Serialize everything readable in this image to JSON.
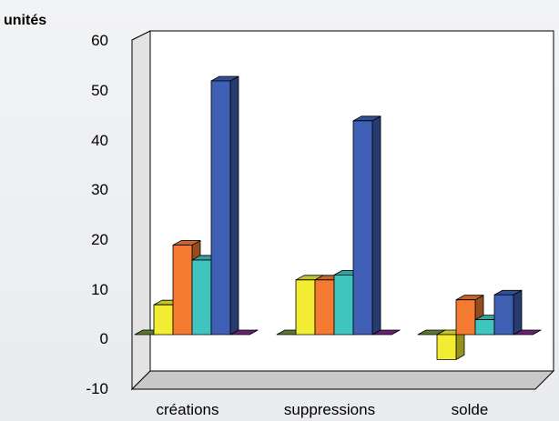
{
  "chart_data": {
    "type": "bar",
    "ylabel": "unités",
    "categories": [
      "créations",
      "suppressions",
      "solde"
    ],
    "y_ticks": [
      "60",
      "50",
      "40",
      "30",
      "20",
      "10",
      "0",
      "-10"
    ],
    "ylim": [
      -10,
      60
    ],
    "grid": false,
    "style": "3d-clustered-bar",
    "series": [
      {
        "color": "#6e8f3a",
        "values": [
          0,
          0,
          0
        ]
      },
      {
        "color": "#f2ec32",
        "values": [
          6,
          11,
          -5
        ]
      },
      {
        "color": "#f47a31",
        "values": [
          18,
          11,
          7
        ]
      },
      {
        "color": "#3fc4c0",
        "values": [
          15,
          12,
          3
        ]
      },
      {
        "color": "#3f5fb4",
        "values": [
          51,
          43,
          8
        ]
      },
      {
        "color": "#7a2a8a",
        "values": [
          0,
          0,
          0
        ]
      }
    ]
  }
}
